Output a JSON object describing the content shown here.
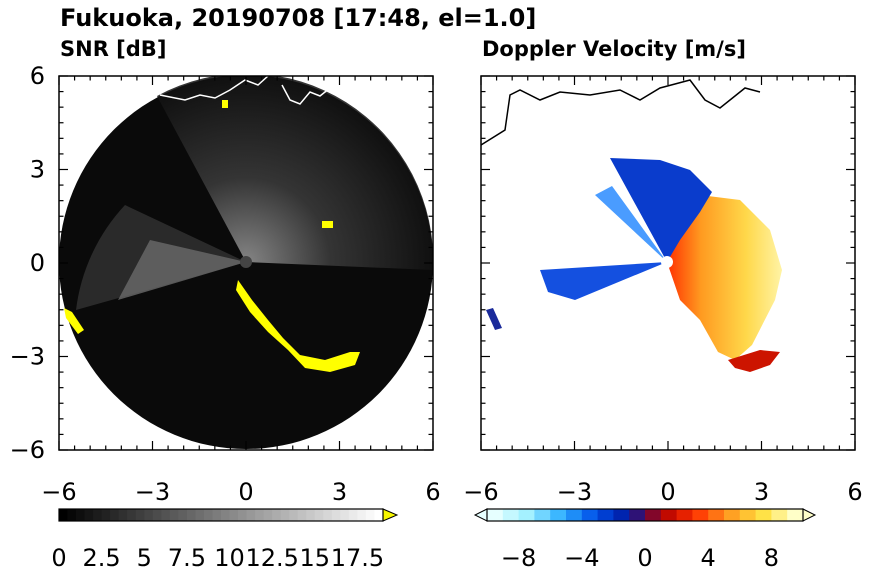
{
  "header": {
    "title": "Fukuoka, 20190708 [17:48, el=1.0]"
  },
  "chart_data": [
    {
      "type": "heatmap",
      "title": "SNR [dB]",
      "xlim": [
        -6,
        6
      ],
      "ylim": [
        -6,
        6
      ],
      "xticks": [
        "−6",
        "−3",
        "0",
        "3",
        "6"
      ],
      "yticks": [
        "6",
        "3",
        "0",
        "−3",
        "−6"
      ],
      "grid": false,
      "colorbar": {
        "min": 0,
        "max": 19,
        "step": 0.5,
        "ticks": [
          "0",
          "2.5",
          "5",
          "7.5",
          "10",
          "12.5",
          "15",
          "17.5"
        ],
        "extend": "max",
        "colors": [
          "#000000",
          "#ffffff"
        ],
        "extend_color": "#f7f700"
      },
      "overlay_color": "#ffff00"
    },
    {
      "type": "heatmap",
      "title": "Doppler Velocity [m/s]",
      "xlim": [
        -6,
        6
      ],
      "ylim": [
        -6,
        6
      ],
      "xticks": [
        "−6",
        "−3",
        "0",
        "3",
        "6"
      ],
      "yticks": [],
      "grid": false,
      "colorbar": {
        "min": -10,
        "max": 10,
        "step": 1,
        "ticks": [
          "−8",
          "−4",
          "0",
          "4",
          "8"
        ],
        "extend": "both",
        "colors": [
          "#e6ffff",
          "#a0f0ff",
          "#30b0ff",
          "#0050e8",
          "#0018a0",
          "#b00000",
          "#ff3000",
          "#ff9a20",
          "#ffe040",
          "#ffffc8"
        ]
      }
    }
  ]
}
